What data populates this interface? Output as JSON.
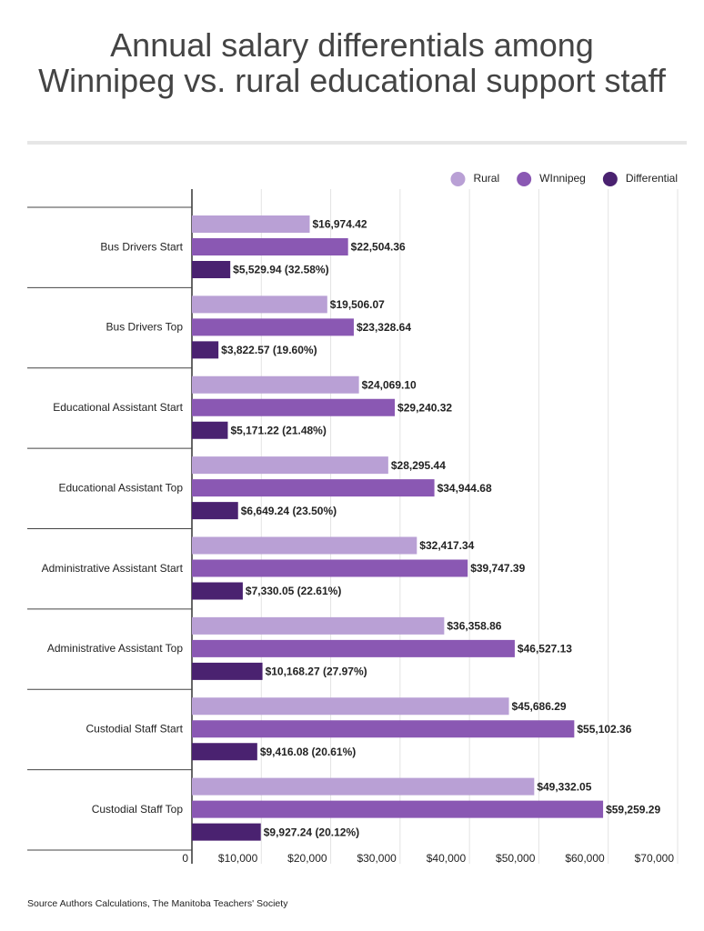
{
  "chart_data": {
    "type": "hbar",
    "title": "Annual salary differentials among Winnipeg vs. rural educational support staff",
    "source": "Source Authors Calculations, The Manitoba Teachers' Society",
    "categories": [
      "Bus Drivers Start",
      "Bus Drivers Top",
      "Educational Assistant Start",
      "Educational Assistant Top",
      "Administrative Assistant Start",
      "Administrative Assistant Top",
      "Custodial Staff Start",
      "Custodial Staff Top"
    ],
    "series": [
      {
        "name": "Rural",
        "color": "#b9a0d5",
        "values": [
          16974.42,
          19506.07,
          24069.1,
          28295.44,
          32417.34,
          36358.86,
          45686.29,
          49332.05
        ],
        "value_labels": [
          "$16,974.42",
          "$19,506.07",
          "$24,069.10",
          "$28,295.44",
          "$32,417.34",
          "$36,358.86",
          "$45,686.29",
          "$49,332.05"
        ]
      },
      {
        "name": "WInnipeg",
        "color": "#8a58b3",
        "values": [
          22504.36,
          23328.64,
          29240.32,
          34944.68,
          39747.39,
          46527.13,
          55102.36,
          59259.29
        ],
        "value_labels": [
          "$22,504.36",
          "$23,328.64",
          "$29,240.32",
          "$34,944.68",
          "$39,747.39",
          "$46,527.13",
          "$55,102.36",
          "$59,259.29"
        ]
      },
      {
        "name": "Differential",
        "color": "#4a2270",
        "values": [
          5529.94,
          3822.57,
          5171.22,
          6649.24,
          7330.05,
          10168.27,
          9416.08,
          9927.24
        ],
        "value_labels": [
          "$5,529.94 (32.58%)",
          "$3,822.57 (19.60%)",
          "$5,171.22 (21.48%)",
          "$6,649.24 (23.50%)",
          "$7,330.05 (22.61%)",
          "$10,168.27 (27.97%)",
          "$9,416.08 (20.61%)",
          "$9,927.24 (20.12%)"
        ]
      }
    ],
    "xlim": [
      0,
      70000
    ],
    "xticks": [
      0,
      {
        "value": 10000,
        "label": "$10,000"
      },
      {
        "value": 20000,
        "label": "$20,000"
      },
      {
        "value": 30000,
        "label": "$30,000"
      },
      {
        "value": 40000,
        "label": "$40,000"
      },
      {
        "value": 50000,
        "label": "$50,000"
      },
      {
        "value": 60000,
        "label": "$60,000"
      },
      {
        "value": 70000,
        "label": "$70,000"
      }
    ],
    "grid": true,
    "legend": "top-right"
  }
}
